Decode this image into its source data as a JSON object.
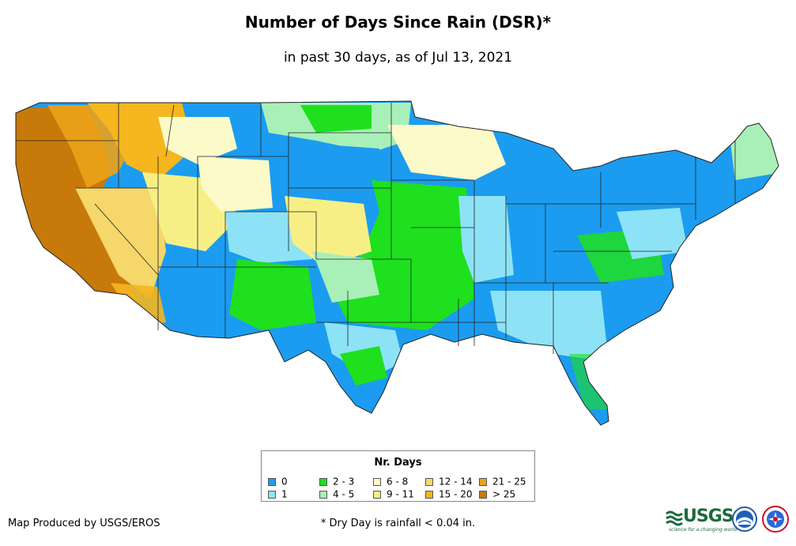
{
  "title": "Number of Days Since Rain (DSR)*",
  "subtitle": "in past 30 days, as of Jul 13, 2021",
  "legend": {
    "title": "Nr. Days",
    "items": [
      {
        "label": "0",
        "color": "#1b9cf0"
      },
      {
        "label": "1",
        "color": "#8de3f5"
      },
      {
        "label": "2 - 3",
        "color": "#1ee01e"
      },
      {
        "label": "4 - 5",
        "color": "#a8f0b8"
      },
      {
        "label": "6 - 8",
        "color": "#fbfac8"
      },
      {
        "label": "9 - 11",
        "color": "#f7ef86"
      },
      {
        "label": "12 - 14",
        "color": "#f5d76a"
      },
      {
        "label": "15 - 20",
        "color": "#f5b61e"
      },
      {
        "label": "21 - 25",
        "color": "#eca219"
      },
      {
        "label": "> 25",
        "color": "#c77a0a"
      }
    ]
  },
  "footnote": "* Dry Day is rainfall < 0.04 in.",
  "credit": "Map Produced by USGS/EROS",
  "logos": {
    "usgs": "USGS",
    "usgs_tagline": "science for a changing world"
  }
}
